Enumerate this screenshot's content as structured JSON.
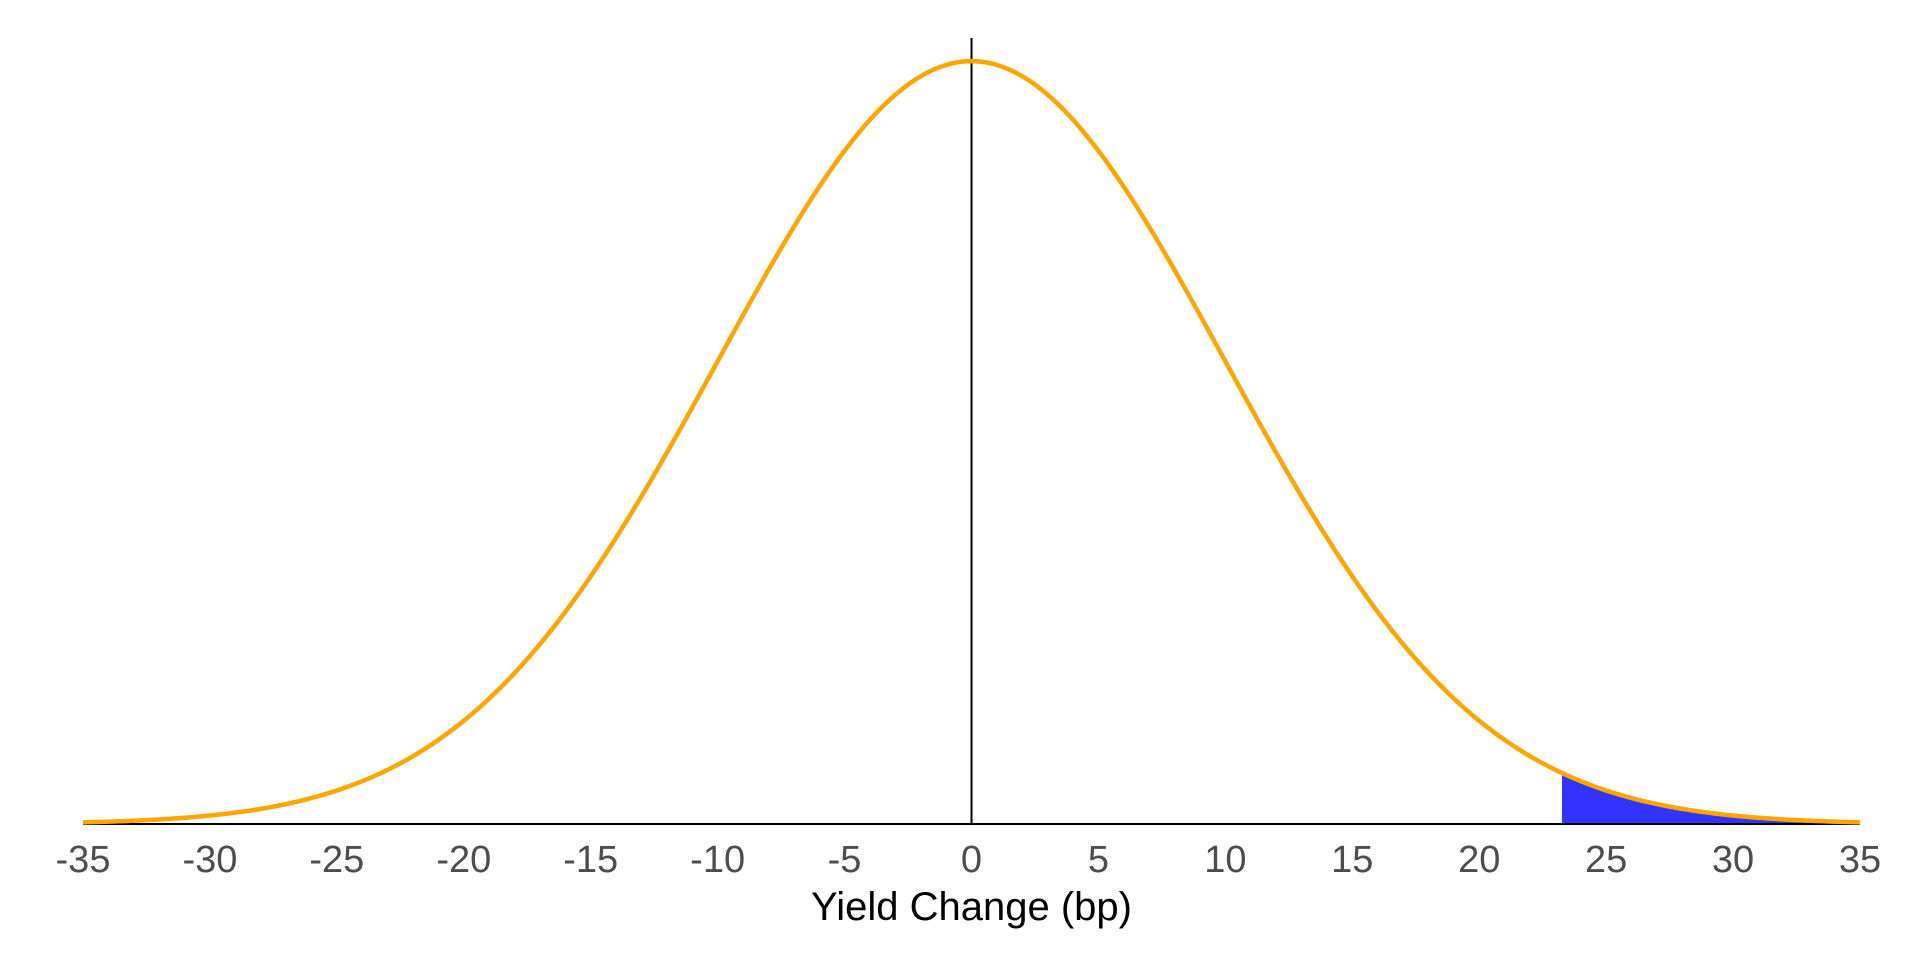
{
  "chart_data": {
    "type": "area",
    "title": "",
    "xlabel": "Yield Change (bp)",
    "ylabel": "",
    "xlim": [
      -35,
      35
    ],
    "ylim": [
      0,
      0.041
    ],
    "xticks": [
      -35,
      -30,
      -25,
      -20,
      -15,
      -10,
      -5,
      0,
      5,
      10,
      15,
      20,
      25,
      30,
      35
    ],
    "xtick_labels": [
      "-35",
      "-30",
      "-25",
      "-20",
      "-15",
      "-10",
      "-5",
      "0",
      "5",
      "10",
      "15",
      "20",
      "25",
      "30",
      "35"
    ],
    "grid": false,
    "legend": "none",
    "series": [
      {
        "kind": "normal-density-curve",
        "mean": 0,
        "sd": 10,
        "x_range": [
          -35,
          35
        ],
        "color": "#FFA500"
      }
    ],
    "shaded_region": {
      "from": 23.26,
      "to": 35,
      "color": "#3333FF"
    },
    "reference_line": {
      "x": 0,
      "color": "#000000"
    }
  }
}
